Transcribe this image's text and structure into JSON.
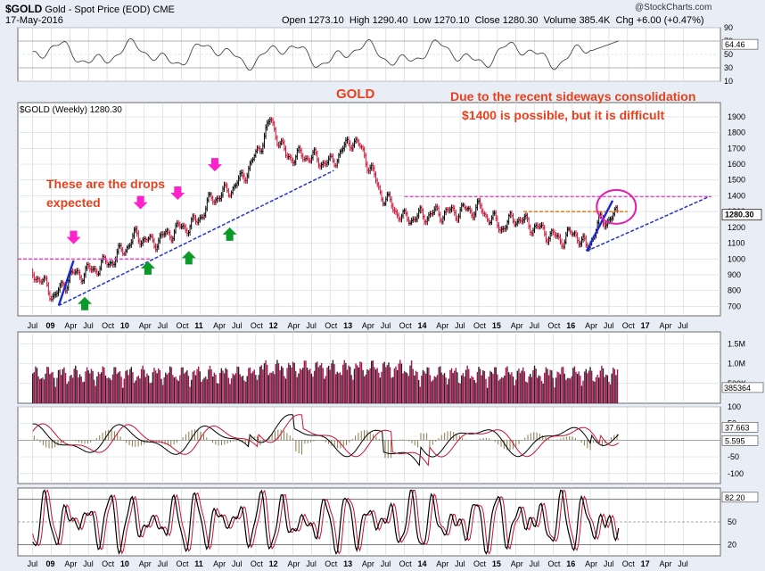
{
  "header": {
    "symbol": "$GOLD",
    "name": "Gold - Spot Price (EOD)",
    "exchange": "CME",
    "date": "17-May-2016",
    "open_label": "Open",
    "open": "1273.10",
    "high_label": "High",
    "high": "1290.40",
    "low_label": "Low",
    "low": "1270.10",
    "close_label": "Close",
    "close": "1280.30",
    "volume_label": "Volume",
    "volume": "385.4K",
    "chg_label": "Chg",
    "chg": "+6.00 (+0.47%)",
    "source": "@StockCharts.com"
  },
  "price_panel": {
    "label": "$GOLD (Weekly) 1280.30",
    "last_value": "1280.30"
  },
  "rsi_panel": {
    "last_value": "64.46"
  },
  "volume_panel": {
    "last_value": "385364"
  },
  "macd_panel": {
    "macd_value": "37.663",
    "signal_value": "5.595"
  },
  "stoch_panel": {
    "last_value": "82.20"
  },
  "annotations": {
    "title": "GOLD",
    "note_line1": "Due to the recent sideways consolidation",
    "note_line2": "$1400 is possible,  but it is difficult",
    "drops_line1": "These are the drops",
    "drops_line2": "expected"
  },
  "colors": {
    "accent": "#e8401c",
    "pink": "#ff22cc",
    "green": "#0a9a28",
    "blue": "#2233cc",
    "up": "#000000",
    "down": "#cc1133",
    "volume": "#a3174f"
  },
  "chart_data": [
    {
      "type": "line",
      "panel": "price",
      "ylim": [
        640,
        1990
      ],
      "yticks": [
        700,
        800,
        900,
        1000,
        1100,
        1200,
        1300,
        1400,
        1500,
        1600,
        1700,
        1800,
        1900
      ],
      "x_labels": [
        "Jul",
        "09",
        "Apr",
        "Jul",
        "Oct",
        "10",
        "Apr",
        "Jul",
        "Oct",
        "11",
        "Apr",
        "Jul",
        "Oct",
        "12",
        "Apr",
        "Jul",
        "Oct",
        "13",
        "Apr",
        "Jul",
        "Oct",
        "14",
        "Apr",
        "Jul",
        "Oct",
        "15",
        "Apr",
        "Jul",
        "Oct",
        "16",
        "Apr",
        "Jul",
        "Oct",
        "17",
        "Apr",
        "Jul"
      ],
      "x": [
        2008.5,
        2008.8,
        2009.0,
        2009.3,
        2009.6,
        2009.9,
        2010.1,
        2010.4,
        2010.7,
        2010.9,
        2011.1,
        2011.3,
        2011.5,
        2011.7,
        2011.9,
        2012.2,
        2012.5,
        2012.8,
        2012.95,
        2013.2,
        2013.5,
        2013.8,
        2014.2,
        2014.5,
        2014.8,
        2015.0,
        2015.3,
        2015.6,
        2015.8,
        2015.95,
        2016.1,
        2016.3,
        2016.38
      ],
      "close": [
        920,
        760,
        890,
        930,
        1000,
        1150,
        1100,
        1180,
        1230,
        1380,
        1420,
        1500,
        1650,
        1880,
        1650,
        1650,
        1600,
        1760,
        1670,
        1400,
        1250,
        1280,
        1300,
        1320,
        1200,
        1260,
        1190,
        1120,
        1170,
        1060,
        1220,
        1270,
        1280
      ],
      "levels": {
        "resistance_1400": 1400,
        "consolidation_1300": 1300,
        "support_1000_2008": 1000
      }
    },
    {
      "type": "line",
      "panel": "rsi",
      "ylim": [
        10,
        90
      ],
      "yticks": [
        10,
        30,
        50,
        70,
        90
      ],
      "last": 64.46
    },
    {
      "type": "bar",
      "panel": "volume",
      "yticks_labels": [
        "500K",
        "1.0M",
        "1.5M"
      ],
      "last": 385364
    },
    {
      "type": "line",
      "panel": "macd",
      "yticks": [
        100,
        50,
        0,
        -50,
        -100
      ],
      "macd_last": 37.663,
      "signal_last": 5.595
    },
    {
      "type": "line",
      "panel": "stochastic",
      "yticks": [
        20,
        50,
        80
      ],
      "last": 82.2
    }
  ]
}
